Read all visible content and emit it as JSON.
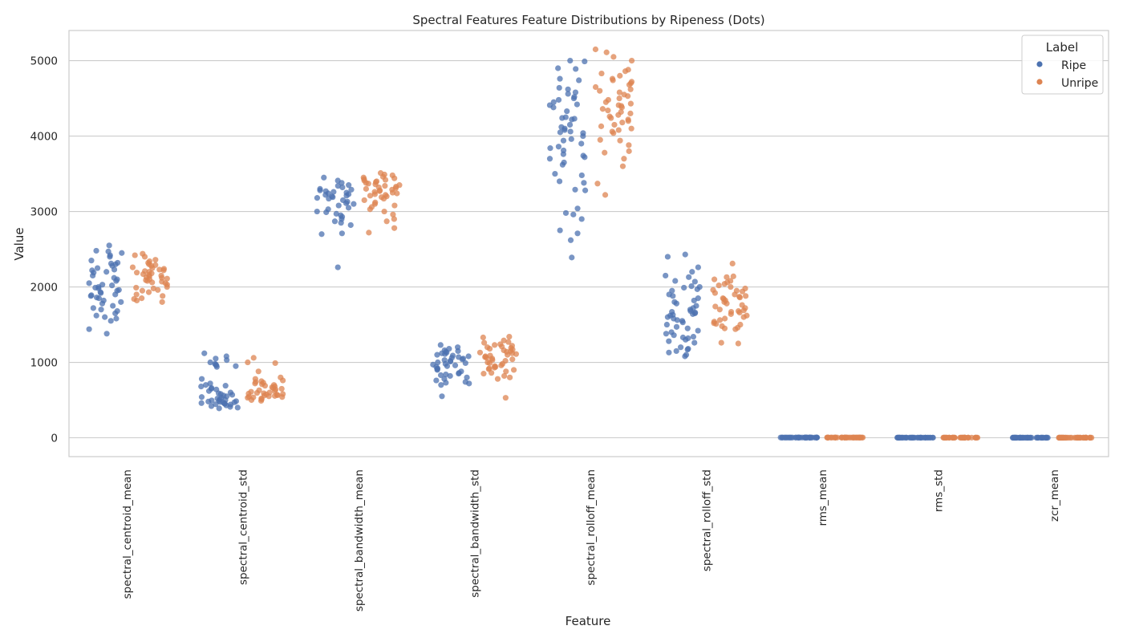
{
  "chart_data": {
    "type": "scatter",
    "subtype": "strip",
    "title": "Spectral Features Feature Distributions by Ripeness (Dots)",
    "xlabel": "Feature",
    "ylabel": "Value",
    "ylim": [
      -250,
      5400
    ],
    "yticks": [
      0,
      1000,
      2000,
      3000,
      4000,
      5000
    ],
    "grid": "horizontal",
    "categories": [
      "spectral_centroid_mean",
      "spectral_centroid_std",
      "spectral_bandwidth_mean",
      "spectral_bandwidth_std",
      "spectral_rolloff_mean",
      "spectral_rolloff_std",
      "rms_mean",
      "rms_std",
      "zcr_mean"
    ],
    "legend": {
      "title": "Label",
      "position": "top-right"
    },
    "series": [
      {
        "name": "Ripe",
        "color": "#4C72B0",
        "values": [
          [
            2550,
            2480,
            2470,
            2450,
            2420,
            2400,
            2350,
            2320,
            2310,
            2300,
            2280,
            2250,
            2230,
            2220,
            2200,
            2190,
            2150,
            2120,
            2100,
            2080,
            2050,
            2030,
            2020,
            2000,
            1990,
            1980,
            1960,
            1950,
            1930,
            1920,
            1900,
            1890,
            1880,
            1860,
            1850,
            1820,
            1800,
            1780,
            1750,
            1720,
            1700,
            1680,
            1650,
            1620,
            1600,
            1580,
            1550,
            1440,
            1380
          ],
          [
            1120,
            1080,
            1050,
            1030,
            1000,
            980,
            970,
            960,
            950,
            940,
            780,
            720,
            700,
            690,
            680,
            660,
            650,
            640,
            620,
            600,
            590,
            580,
            570,
            560,
            550,
            540,
            530,
            520,
            510,
            500,
            495,
            490,
            485,
            480,
            475,
            470,
            465,
            460,
            455,
            450,
            445,
            440,
            430,
            420,
            410,
            400,
            390
          ],
          [
            3450,
            3410,
            3380,
            3350,
            3340,
            3320,
            3300,
            3290,
            3280,
            3270,
            3260,
            3250,
            3240,
            3230,
            3220,
            3210,
            3200,
            3190,
            3180,
            3170,
            3150,
            3130,
            3110,
            3100,
            3080,
            3050,
            3030,
            3000,
            2990,
            2970,
            2950,
            2930,
            2900,
            2870,
            2850,
            2820,
            2710,
            2700,
            2260
          ],
          [
            1230,
            1200,
            1180,
            1160,
            1150,
            1140,
            1130,
            1120,
            1110,
            1100,
            1090,
            1080,
            1070,
            1060,
            1050,
            1040,
            1030,
            1020,
            1010,
            1000,
            990,
            980,
            970,
            960,
            950,
            940,
            920,
            910,
            900,
            880,
            860,
            850,
            840,
            830,
            820,
            800,
            780,
            760,
            740,
            730,
            720,
            700,
            550
          ],
          [
            5000,
            4990,
            4900,
            4890,
            4760,
            4740,
            4640,
            4620,
            4580,
            4560,
            4520,
            4500,
            4480,
            4450,
            4420,
            4410,
            4380,
            4330,
            4250,
            4240,
            4230,
            4220,
            4150,
            4120,
            4100,
            4080,
            4060,
            4050,
            4040,
            4000,
            3960,
            3940,
            3900,
            3860,
            3840,
            3810,
            3760,
            3740,
            3720,
            3700,
            3650,
            3620,
            3500,
            3480,
            3400,
            3380,
            3290,
            3280,
            3040,
            2980,
            2960,
            2900,
            2750,
            2710,
            2620,
            2390
          ],
          [
            2430,
            2400,
            2260,
            2200,
            2150,
            2130,
            2080,
            2070,
            2010,
            2000,
            1990,
            1970,
            1950,
            1900,
            1880,
            1850,
            1820,
            1800,
            1780,
            1750,
            1720,
            1700,
            1680,
            1670,
            1660,
            1650,
            1640,
            1630,
            1620,
            1600,
            1580,
            1560,
            1550,
            1530,
            1500,
            1470,
            1450,
            1420,
            1400,
            1380,
            1360,
            1340,
            1330,
            1320,
            1300,
            1280,
            1260,
            1200,
            1180,
            1170,
            1150,
            1130,
            1100,
            1080
          ],
          [
            3,
            3,
            3,
            3,
            3,
            3,
            3,
            3,
            3,
            3,
            3,
            3,
            3,
            3,
            3,
            3,
            3,
            3,
            3,
            3,
            3,
            3,
            3,
            3,
            3,
            3,
            3,
            3,
            3,
            3,
            3,
            3,
            3,
            3,
            3,
            3,
            3,
            3,
            3,
            3
          ],
          [
            2,
            2,
            2,
            2,
            2,
            2,
            2,
            2,
            2,
            2,
            2,
            2,
            2,
            2,
            2,
            2,
            2,
            2,
            2,
            2,
            2,
            2,
            2,
            2,
            2,
            2,
            2,
            2,
            2,
            2,
            2,
            2,
            2,
            2,
            2,
            2,
            2,
            2,
            2,
            2
          ],
          [
            1,
            1,
            1,
            1,
            1,
            1,
            1,
            1,
            1,
            1,
            1,
            1,
            1,
            1,
            1,
            1,
            1,
            1,
            1,
            1,
            1,
            1,
            1,
            1,
            1,
            1,
            1,
            1,
            1,
            1,
            1,
            1,
            1,
            1,
            1,
            1,
            1,
            1,
            1,
            1
          ]
        ]
      },
      {
        "name": "Unripe",
        "color": "#DD8452",
        "values": [
          [
            2440,
            2420,
            2400,
            2360,
            2340,
            2320,
            2300,
            2290,
            2280,
            2260,
            2250,
            2240,
            2230,
            2220,
            2210,
            2200,
            2190,
            2180,
            2170,
            2160,
            2150,
            2140,
            2130,
            2120,
            2110,
            2100,
            2090,
            2080,
            2070,
            2060,
            2050,
            2030,
            2000,
            1990,
            1980,
            1960,
            1950,
            1930,
            1900,
            1880,
            1850,
            1840,
            1820,
            1800
          ],
          [
            1060,
            1000,
            990,
            880,
            800,
            780,
            760,
            750,
            740,
            730,
            720,
            710,
            700,
            690,
            680,
            670,
            660,
            650,
            640,
            630,
            620,
            610,
            600,
            595,
            590,
            585,
            580,
            575,
            570,
            565,
            560,
            555,
            550,
            545,
            540,
            535,
            530,
            520,
            510,
            500,
            490
          ],
          [
            3510,
            3490,
            3480,
            3460,
            3450,
            3440,
            3430,
            3420,
            3410,
            3400,
            3390,
            3380,
            3370,
            3360,
            3350,
            3340,
            3330,
            3320,
            3310,
            3300,
            3290,
            3280,
            3270,
            3260,
            3250,
            3240,
            3230,
            3220,
            3210,
            3200,
            3190,
            3170,
            3150,
            3120,
            3100,
            3080,
            3060,
            3030,
            3000,
            2960,
            2900,
            2870,
            2780,
            2720
          ],
          [
            1340,
            1330,
            1290,
            1270,
            1260,
            1240,
            1230,
            1220,
            1210,
            1200,
            1190,
            1180,
            1170,
            1160,
            1150,
            1140,
            1130,
            1120,
            1110,
            1100,
            1090,
            1080,
            1070,
            1060,
            1050,
            1040,
            1030,
            1020,
            1000,
            990,
            980,
            960,
            950,
            940,
            930,
            920,
            910,
            900,
            880,
            860,
            850,
            820,
            800,
            780,
            530
          ],
          [
            5150,
            5110,
            5050,
            5000,
            4880,
            4860,
            4830,
            4800,
            4760,
            4740,
            4720,
            4700,
            4680,
            4650,
            4620,
            4600,
            4580,
            4550,
            4530,
            4500,
            4480,
            4450,
            4430,
            4410,
            4400,
            4380,
            4360,
            4340,
            4320,
            4300,
            4280,
            4260,
            4240,
            4220,
            4200,
            4180,
            4150,
            4130,
            4100,
            4080,
            4060,
            4040,
            3950,
            3940,
            3880,
            3800,
            3780,
            3700,
            3600,
            3370,
            3220
          ],
          [
            2310,
            2140,
            2130,
            2100,
            2080,
            2060,
            2040,
            2020,
            2000,
            1980,
            1960,
            1950,
            1940,
            1920,
            1900,
            1880,
            1870,
            1860,
            1850,
            1840,
            1820,
            1800,
            1780,
            1760,
            1740,
            1720,
            1700,
            1690,
            1680,
            1670,
            1660,
            1640,
            1620,
            1600,
            1580,
            1560,
            1540,
            1520,
            1510,
            1500,
            1480,
            1460,
            1450,
            1440,
            1260,
            1250
          ],
          [
            3,
            3,
            3,
            3,
            3,
            3,
            3,
            3,
            3,
            3,
            3,
            3,
            3,
            3,
            3,
            3,
            3,
            3,
            3,
            3,
            3,
            3,
            3,
            3,
            3,
            3,
            3,
            3,
            3,
            3,
            3,
            3,
            3,
            3,
            3,
            3,
            3,
            3,
            3,
            3
          ],
          [
            2,
            2,
            2,
            2,
            2,
            2,
            2,
            2,
            2,
            2,
            2,
            2,
            2,
            2,
            2,
            2,
            2,
            2,
            2,
            2,
            2,
            2,
            2,
            2,
            2,
            2,
            2,
            2,
            2,
            2,
            2,
            2,
            2,
            2,
            2,
            2,
            2,
            2,
            2,
            2
          ],
          [
            1,
            1,
            1,
            1,
            1,
            1,
            1,
            1,
            1,
            1,
            1,
            1,
            1,
            1,
            1,
            1,
            1,
            1,
            1,
            1,
            1,
            1,
            1,
            1,
            1,
            1,
            1,
            1,
            1,
            1,
            1,
            1,
            1,
            1,
            1,
            1,
            1,
            1,
            1,
            1
          ]
        ]
      }
    ]
  }
}
